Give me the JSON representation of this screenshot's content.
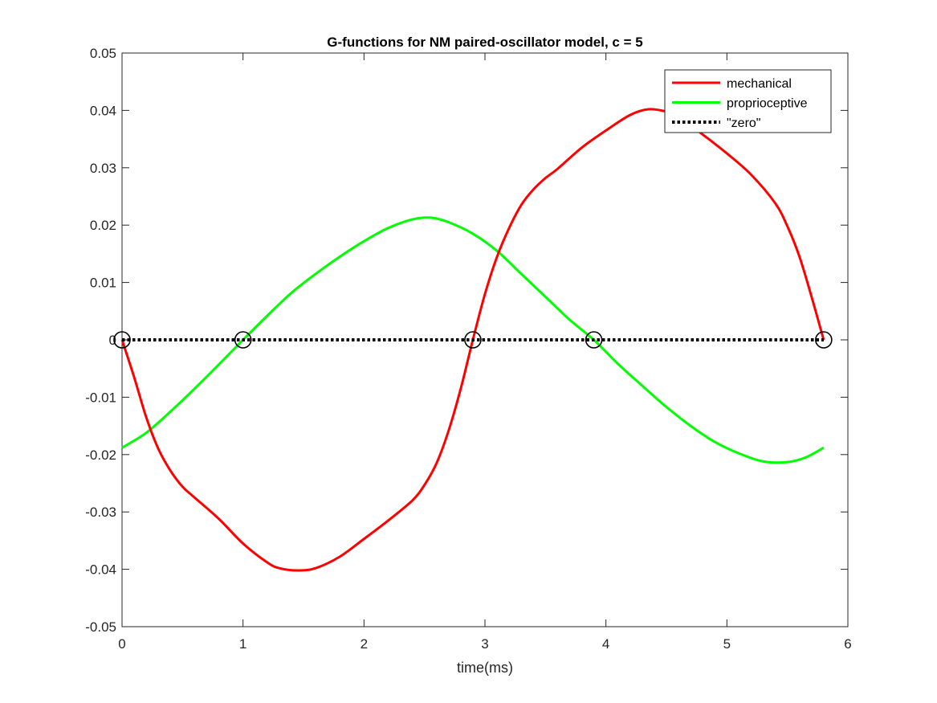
{
  "chart_data": {
    "type": "line",
    "title": "G-functions for NM paired-oscillator model, c = 5",
    "xlabel": "time(ms)",
    "ylabel": "",
    "xlim": [
      0,
      6
    ],
    "ylim": [
      -0.05,
      0.05
    ],
    "xticks": [
      0,
      1,
      2,
      3,
      4,
      5,
      6
    ],
    "xtick_labels": [
      "0",
      "1",
      "2",
      "3",
      "4",
      "5",
      "6"
    ],
    "yticks": [
      -0.05,
      -0.04,
      -0.03,
      -0.02,
      -0.01,
      0,
      0.01,
      0.02,
      0.03,
      0.04,
      0.05
    ],
    "ytick_labels": [
      "-0.05",
      "-0.04",
      "-0.03",
      "-0.02",
      "-0.01",
      "0",
      "0.01",
      "0.02",
      "0.03",
      "0.04",
      "0.05"
    ],
    "grid": false,
    "legend_position": "top-right",
    "series": [
      {
        "name": "mechanical",
        "color": "#ff0000",
        "style": "solid",
        "x": [
          0,
          0.1,
          0.2,
          0.3,
          0.4,
          0.5,
          0.6,
          0.8,
          1.0,
          1.2,
          1.3,
          1.45,
          1.6,
          1.8,
          2.0,
          2.2,
          2.4,
          2.5,
          2.6,
          2.7,
          2.8,
          2.9,
          3.0,
          3.1,
          3.2,
          3.3,
          3.4,
          3.5,
          3.6,
          3.8,
          4.0,
          4.2,
          4.35,
          4.5,
          4.6,
          4.8,
          5.0,
          5.2,
          5.4,
          5.5,
          5.6,
          5.7,
          5.8
        ],
        "y": [
          0,
          -0.0065,
          -0.0135,
          -0.019,
          -0.0228,
          -0.0256,
          -0.0275,
          -0.0312,
          -0.0355,
          -0.0388,
          -0.0398,
          -0.0402,
          -0.0398,
          -0.0378,
          -0.0347,
          -0.0315,
          -0.028,
          -0.0253,
          -0.0215,
          -0.0158,
          -0.0085,
          0,
          0.008,
          0.0145,
          0.0195,
          0.0235,
          0.0262,
          0.0282,
          0.0298,
          0.0335,
          0.0365,
          0.0392,
          0.0402,
          0.0398,
          0.039,
          0.0358,
          0.0325,
          0.0288,
          0.0238,
          0.0198,
          0.0145,
          0.0075,
          0
        ]
      },
      {
        "name": "proprioceptive",
        "color": "#00ff00",
        "style": "solid",
        "x": [
          0,
          0.2,
          0.4,
          0.6,
          0.8,
          1.0,
          1.2,
          1.4,
          1.6,
          1.8,
          2.0,
          2.2,
          2.4,
          2.55,
          2.7,
          2.9,
          3.1,
          3.3,
          3.5,
          3.7,
          3.9,
          4.1,
          4.3,
          4.5,
          4.7,
          4.9,
          5.1,
          5.3,
          5.5,
          5.65,
          5.8
        ],
        "y": [
          -0.0188,
          -0.0162,
          -0.0125,
          -0.0085,
          -0.0043,
          0,
          0.0042,
          0.0082,
          0.0115,
          0.0145,
          0.0172,
          0.0195,
          0.021,
          0.0213,
          0.0205,
          0.0185,
          0.0155,
          0.0115,
          0.0075,
          0.0035,
          0,
          -0.0042,
          -0.008,
          -0.0117,
          -0.015,
          -0.0178,
          -0.0198,
          -0.0212,
          -0.0213,
          -0.0205,
          -0.0188
        ]
      },
      {
        "name": "\"zero\"",
        "color": "#000000",
        "style": "dotted",
        "x": [
          0,
          5.8
        ],
        "y": [
          0,
          0
        ]
      }
    ],
    "markers": {
      "shape": "circle-open",
      "color": "#000000",
      "x": [
        0,
        1.0,
        2.9,
        3.9,
        5.8
      ],
      "y": [
        0,
        0,
        0,
        0,
        0
      ]
    }
  }
}
